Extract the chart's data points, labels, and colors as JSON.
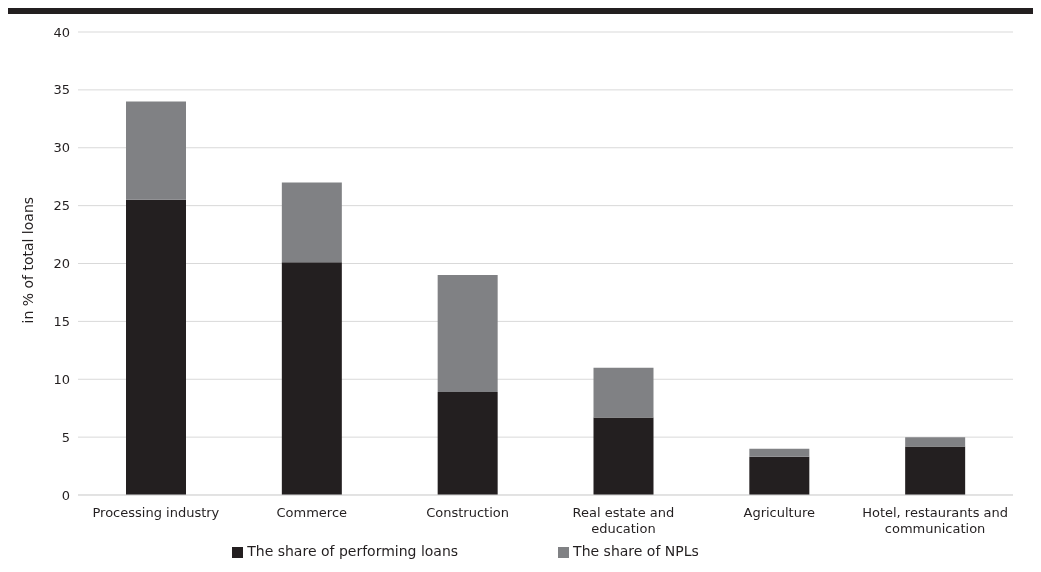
{
  "chart_data": {
    "type": "bar",
    "stacked": true,
    "ylabel": "in % of total loans",
    "categories": [
      "Processing industry",
      "Commerce",
      "Construction",
      "Real estate and education",
      "Agriculture",
      "Hotel, restaurants and communication"
    ],
    "series": [
      {
        "name": "The share of performing loans",
        "color": "#231f20",
        "values": [
          25.5,
          20.1,
          8.9,
          6.7,
          3.3,
          4.2
        ]
      },
      {
        "name": "The share of NPLs",
        "color": "#808184",
        "values": [
          8.5,
          6.9,
          10.1,
          4.3,
          0.7,
          0.8
        ]
      }
    ],
    "ylim": [
      0,
      40
    ],
    "yticks": [
      0,
      5,
      10,
      15,
      20,
      25,
      30,
      35,
      40
    ],
    "grid": "y",
    "legend": "bottom"
  }
}
